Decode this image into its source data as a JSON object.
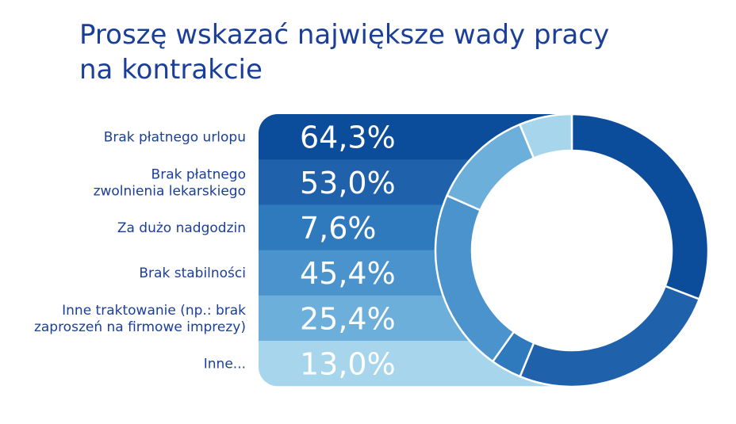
{
  "title_lines": [
    "Proszę wskazać największe wady pracy",
    "na kontrakcie"
  ],
  "chart_data": {
    "type": "bar",
    "title": "Proszę wskazać największe wady pracy na kontrakcie",
    "categories": [
      [
        "Brak płatnego urlopu"
      ],
      [
        "Brak płatnego",
        "zwolnienia lekarskiego"
      ],
      [
        "Za dużo nadgodzin"
      ],
      [
        "Brak stabilności"
      ],
      [
        "Inne traktowanie (np.: brak",
        "zaproszeń na firmowe imprezy)"
      ],
      [
        "Inne..."
      ]
    ],
    "values": [
      64.3,
      53.0,
      7.6,
      45.4,
      25.4,
      13.0
    ],
    "value_labels": [
      "64,3%",
      "53,0%",
      "7,6%",
      "45,4%",
      "25,4%",
      "13,0%"
    ],
    "unit": "%",
    "colors": [
      "#0b4c9b",
      "#1f61aa",
      "#2f79bd",
      "#4a93cc",
      "#6cafdb",
      "#a7d6ec"
    ]
  }
}
